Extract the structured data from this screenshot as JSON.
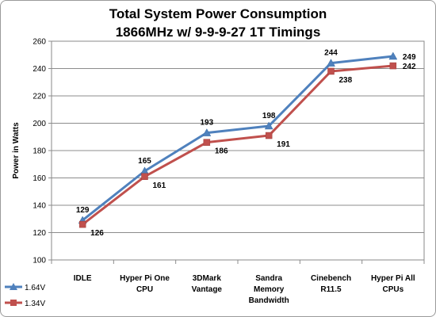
{
  "chart_data": {
    "type": "line",
    "title_line1": "Total System Power Consumption",
    "title_line2": "1866MHz w/ 9-9-9-27  1T Timings",
    "ylabel": "Power in Watts",
    "xlabel": "",
    "ylim": [
      100,
      260
    ],
    "yticks": [
      "100",
      "120",
      "140",
      "160",
      "180",
      "200",
      "220",
      "240",
      "260"
    ],
    "grid": true,
    "legend_position": "bottom-left",
    "categories": [
      [
        "IDLE"
      ],
      [
        "Hyper Pi One",
        "CPU"
      ],
      [
        "3DMark",
        "Vantage"
      ],
      [
        "Sandra",
        "Memory",
        "Bandwidth"
      ],
      [
        "Cinebench",
        "R11.5"
      ],
      [
        "Hyper Pi All",
        "CPUs"
      ]
    ],
    "series": [
      {
        "name": "1.64V",
        "values": [
          129,
          165,
          193,
          198,
          244,
          249
        ],
        "color": "#4f81bd",
        "marker": "triangle"
      },
      {
        "name": "1.34V",
        "values": [
          126,
          161,
          186,
          191,
          238,
          242
        ],
        "color": "#c0504d",
        "marker": "square"
      }
    ]
  }
}
